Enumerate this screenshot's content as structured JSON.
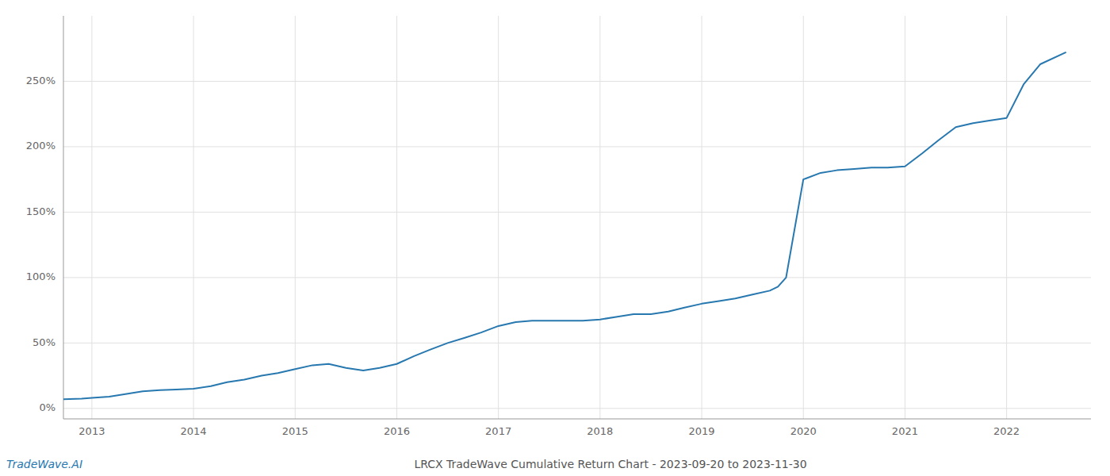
{
  "chart_data": {
    "type": "line",
    "title": "LRCX TradeWave Cumulative Return Chart - 2023-09-20 to 2023-11-30",
    "annotations": [
      "TradeWave.AI"
    ],
    "color": "#2878b0",
    "grid": true,
    "x": [
      2012.72,
      2012.9,
      2013.0,
      2013.17,
      2013.33,
      2013.5,
      2013.67,
      2013.83,
      2014.0,
      2014.17,
      2014.33,
      2014.5,
      2014.67,
      2014.83,
      2015.0,
      2015.17,
      2015.33,
      2015.5,
      2015.67,
      2015.83,
      2016.0,
      2016.17,
      2016.33,
      2016.5,
      2016.67,
      2016.83,
      2017.0,
      2017.17,
      2017.33,
      2017.5,
      2017.67,
      2017.83,
      2018.0,
      2018.17,
      2018.33,
      2018.5,
      2018.67,
      2018.83,
      2019.0,
      2019.17,
      2019.33,
      2019.5,
      2019.67,
      2019.75,
      2019.83,
      2020.0,
      2020.17,
      2020.33,
      2020.5,
      2020.67,
      2020.83,
      2021.0,
      2021.17,
      2021.33,
      2021.5,
      2021.67,
      2021.83,
      2022.0,
      2022.17,
      2022.33,
      2022.58
    ],
    "values": [
      7,
      7.5,
      8,
      9,
      11,
      13,
      14,
      14.5,
      15,
      17,
      20,
      22,
      25,
      27,
      30,
      33,
      34,
      31,
      29,
      31,
      34,
      40,
      45,
      50,
      54,
      58,
      63,
      66,
      67,
      67,
      67,
      67,
      68,
      70,
      72,
      72,
      74,
      77,
      80,
      82,
      84,
      87,
      90,
      93,
      100,
      175,
      180,
      182,
      183,
      184,
      184,
      185,
      195,
      205,
      215,
      218,
      220,
      222,
      248,
      263,
      272
    ],
    "xlim": [
      2012.72,
      2022.83
    ],
    "xticks": [
      2013,
      2014,
      2015,
      2016,
      2017,
      2018,
      2019,
      2020,
      2021,
      2022
    ],
    "ylim": [
      -8,
      300
    ],
    "yticks": [
      {
        "value": 0,
        "label": "0%"
      },
      {
        "value": 50,
        "label": "50%"
      },
      {
        "value": 100,
        "label": "100%"
      },
      {
        "value": 150,
        "label": "150%"
      },
      {
        "value": 200,
        "label": "200%"
      },
      {
        "value": 250,
        "label": "250%"
      }
    ]
  }
}
